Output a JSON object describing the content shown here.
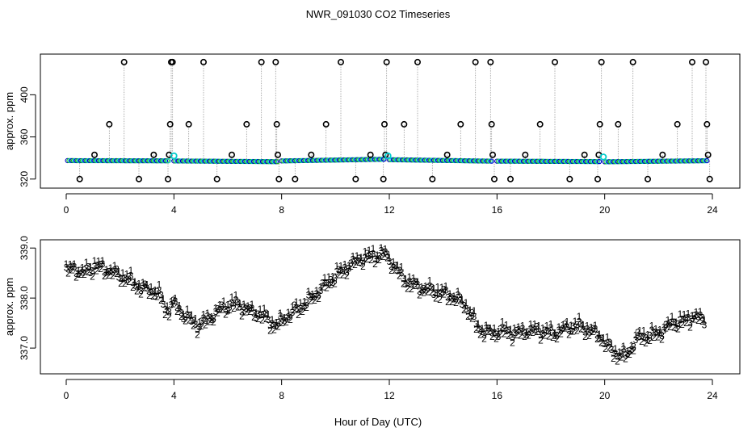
{
  "title": "NWR_091030  CO2 Timeseries",
  "colors": {
    "frame": "#000000",
    "gray": "#9a9a9a",
    "s1": "#dd0000",
    "s2": "#22bb22",
    "s3": "#0000cc",
    "cyan": "#00cccc",
    "open": "#000000"
  },
  "chart_data": [
    {
      "type": "scatter",
      "id": "top",
      "title": "",
      "xlabel": "",
      "ylabel": "approx. ppm",
      "xlim": [
        0,
        24
      ],
      "ylim": [
        316,
        434
      ],
      "xticks": [
        0,
        4,
        8,
        12,
        16,
        20,
        24
      ],
      "yticks": [
        320,
        360,
        400
      ],
      "tick_labels_x": [
        "0",
        "4",
        "8",
        "12",
        "16",
        "20",
        "24"
      ],
      "tick_labels_y": [
        "320",
        "360",
        "400"
      ],
      "baseline_segments": [
        {
          "from": [
            0.05,
            337.5
          ],
          "to": [
            3.8,
            337.3
          ]
        },
        {
          "from": [
            4.0,
            337.2
          ],
          "to": [
            7.85,
            336.5
          ]
        },
        {
          "from": [
            8.0,
            337.2
          ],
          "to": [
            11.8,
            338.8
          ]
        },
        {
          "from": [
            12.0,
            338.4
          ],
          "to": [
            15.8,
            337.0
          ]
        },
        {
          "from": [
            16.0,
            337.0
          ],
          "to": [
            19.8,
            336.6
          ]
        },
        {
          "from": [
            20.0,
            336.4
          ],
          "to": [
            23.8,
            337.4
          ]
        }
      ],
      "outliers": [
        {
          "x": 0.5,
          "y": 320
        },
        {
          "x": 1.05,
          "y": 343
        },
        {
          "x": 1.6,
          "y": 372
        },
        {
          "x": 2.15,
          "y": 431
        },
        {
          "x": 2.7,
          "y": 320
        },
        {
          "x": 3.25,
          "y": 343
        },
        {
          "x": 3.78,
          "y": 320
        },
        {
          "x": 3.82,
          "y": 343
        },
        {
          "x": 3.86,
          "y": 372
        },
        {
          "x": 3.9,
          "y": 431
        },
        {
          "x": 3.95,
          "y": 431
        },
        {
          "x": 4.55,
          "y": 372
        },
        {
          "x": 5.1,
          "y": 431
        },
        {
          "x": 5.6,
          "y": 320
        },
        {
          "x": 6.15,
          "y": 343
        },
        {
          "x": 6.7,
          "y": 372
        },
        {
          "x": 7.25,
          "y": 431
        },
        {
          "x": 7.78,
          "y": 431
        },
        {
          "x": 7.82,
          "y": 372
        },
        {
          "x": 7.86,
          "y": 343
        },
        {
          "x": 7.9,
          "y": 320
        },
        {
          "x": 8.5,
          "y": 320
        },
        {
          "x": 9.1,
          "y": 343
        },
        {
          "x": 9.65,
          "y": 372
        },
        {
          "x": 10.2,
          "y": 431
        },
        {
          "x": 10.75,
          "y": 320
        },
        {
          "x": 11.3,
          "y": 343
        },
        {
          "x": 11.78,
          "y": 320
        },
        {
          "x": 11.82,
          "y": 372
        },
        {
          "x": 11.86,
          "y": 343
        },
        {
          "x": 11.9,
          "y": 431
        },
        {
          "x": 12.55,
          "y": 372
        },
        {
          "x": 13.05,
          "y": 431
        },
        {
          "x": 13.6,
          "y": 320
        },
        {
          "x": 14.15,
          "y": 343
        },
        {
          "x": 14.65,
          "y": 372
        },
        {
          "x": 15.2,
          "y": 431
        },
        {
          "x": 15.76,
          "y": 431
        },
        {
          "x": 15.8,
          "y": 372
        },
        {
          "x": 15.84,
          "y": 343
        },
        {
          "x": 15.9,
          "y": 320
        },
        {
          "x": 16.5,
          "y": 320
        },
        {
          "x": 17.05,
          "y": 343
        },
        {
          "x": 17.6,
          "y": 372
        },
        {
          "x": 18.15,
          "y": 431
        },
        {
          "x": 18.7,
          "y": 320
        },
        {
          "x": 19.25,
          "y": 343
        },
        {
          "x": 19.74,
          "y": 320
        },
        {
          "x": 19.78,
          "y": 343
        },
        {
          "x": 19.82,
          "y": 372
        },
        {
          "x": 19.88,
          "y": 431
        },
        {
          "x": 20.5,
          "y": 372
        },
        {
          "x": 21.05,
          "y": 431
        },
        {
          "x": 21.6,
          "y": 320
        },
        {
          "x": 22.15,
          "y": 343
        },
        {
          "x": 22.7,
          "y": 372
        },
        {
          "x": 23.25,
          "y": 431
        },
        {
          "x": 23.76,
          "y": 431
        },
        {
          "x": 23.8,
          "y": 372
        },
        {
          "x": 23.84,
          "y": 343
        },
        {
          "x": 23.9,
          "y": 320
        }
      ],
      "highlight_points": [
        {
          "x": 4.0,
          "y": 342
        },
        {
          "x": 11.95,
          "y": 342
        },
        {
          "x": 19.95,
          "y": 341
        }
      ]
    },
    {
      "type": "scatter",
      "id": "bottom",
      "title": "",
      "xlabel": "Hour of Day (UTC)",
      "ylabel": "approx. ppm",
      "xlim": [
        0,
        24
      ],
      "ylim": [
        336.55,
        339.1
      ],
      "xticks": [
        0,
        4,
        8,
        12,
        16,
        20,
        24
      ],
      "yticks": [
        337.0,
        338.0,
        339.0
      ],
      "tick_labels_x": [
        "0",
        "4",
        "8",
        "12",
        "16",
        "20",
        "24"
      ],
      "tick_labels_y": [
        "337.0",
        "338.0",
        "339.0"
      ],
      "series": [
        {
          "name": "1",
          "marker": "1",
          "offset": 0.09
        },
        {
          "name": "2",
          "marker": "2",
          "offset": -0.09
        },
        {
          "name": "3",
          "marker": "3",
          "offset": 0.0
        }
      ],
      "key_points": [
        [
          0.0,
          338.55
        ],
        [
          0.3,
          338.6
        ],
        [
          0.6,
          338.5
        ],
        [
          1.1,
          338.65
        ],
        [
          1.6,
          338.55
        ],
        [
          2.0,
          338.45
        ],
        [
          2.4,
          338.35
        ],
        [
          2.8,
          338.2
        ],
        [
          3.2,
          338.15
        ],
        [
          3.5,
          338.05
        ],
        [
          3.7,
          337.75
        ],
        [
          4.0,
          337.9
        ],
        [
          4.4,
          337.65
        ],
        [
          4.9,
          337.45
        ],
        [
          5.3,
          337.6
        ],
        [
          5.8,
          337.8
        ],
        [
          6.3,
          337.9
        ],
        [
          6.8,
          337.75
        ],
        [
          7.3,
          337.65
        ],
        [
          7.8,
          337.45
        ],
        [
          8.1,
          337.6
        ],
        [
          8.5,
          337.75
        ],
        [
          9.0,
          337.95
        ],
        [
          9.5,
          338.2
        ],
        [
          10.0,
          338.45
        ],
        [
          10.5,
          338.65
        ],
        [
          11.0,
          338.8
        ],
        [
          11.5,
          338.85
        ],
        [
          11.8,
          338.9
        ],
        [
          12.1,
          338.7
        ],
        [
          12.5,
          338.4
        ],
        [
          12.8,
          338.3
        ],
        [
          13.2,
          338.2
        ],
        [
          13.6,
          338.15
        ],
        [
          14.0,
          338.1
        ],
        [
          14.5,
          338.0
        ],
        [
          14.9,
          337.8
        ],
        [
          15.3,
          337.4
        ],
        [
          15.8,
          337.3
        ],
        [
          16.2,
          337.35
        ],
        [
          16.7,
          337.3
        ],
        [
          17.1,
          337.35
        ],
        [
          17.6,
          337.35
        ],
        [
          18.1,
          337.3
        ],
        [
          18.6,
          337.4
        ],
        [
          19.0,
          337.45
        ],
        [
          19.5,
          337.35
        ],
        [
          19.8,
          337.25
        ],
        [
          20.1,
          337.05
        ],
        [
          20.4,
          336.9
        ],
        [
          20.8,
          336.85
        ],
        [
          21.2,
          337.2
        ],
        [
          21.6,
          337.25
        ],
        [
          22.0,
          337.3
        ],
        [
          22.5,
          337.5
        ],
        [
          23.0,
          337.55
        ],
        [
          23.3,
          337.65
        ],
        [
          23.7,
          337.55
        ]
      ]
    }
  ]
}
